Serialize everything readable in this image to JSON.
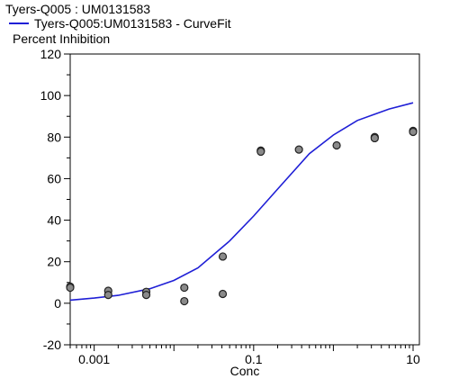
{
  "chart_data": {
    "type": "scatter",
    "title": "Tyers-Q005 : UM0131583",
    "legend": [
      {
        "name": "Tyers-Q005:UM0131583 - CurveFit",
        "color": "#1f1fd6"
      }
    ],
    "ylabel": "Percent Inhibition",
    "xlabel": "Conc",
    "xscale": "log",
    "xlim": [
      0.0005,
      12
    ],
    "ylim": [
      -20,
      120
    ],
    "yticks": [
      -20,
      0,
      20,
      40,
      60,
      80,
      100,
      120
    ],
    "xticks": [
      {
        "value": 0.001,
        "label": "0.001"
      },
      {
        "value": 0.1,
        "label": "0.1"
      },
      {
        "value": 10,
        "label": "10"
      }
    ],
    "points": [
      {
        "x": 0.0005,
        "y": 8
      },
      {
        "x": 0.0005,
        "y": 7.5
      },
      {
        "x": 0.0015,
        "y": 6
      },
      {
        "x": 0.0015,
        "y": 4
      },
      {
        "x": 0.0045,
        "y": 5.5
      },
      {
        "x": 0.0045,
        "y": 4
      },
      {
        "x": 0.0135,
        "y": 7.5
      },
      {
        "x": 0.0135,
        "y": 1
      },
      {
        "x": 0.041,
        "y": 22.5
      },
      {
        "x": 0.041,
        "y": 4.5
      },
      {
        "x": 0.123,
        "y": 73.5
      },
      {
        "x": 0.123,
        "y": 73
      },
      {
        "x": 0.37,
        "y": 74
      },
      {
        "x": 1.1,
        "y": 76
      },
      {
        "x": 3.3,
        "y": 80
      },
      {
        "x": 3.3,
        "y": 79.5
      },
      {
        "x": 10,
        "y": 83
      },
      {
        "x": 10,
        "y": 82.5
      }
    ],
    "curve": [
      {
        "x": 0.0005,
        "y": 1.5
      },
      {
        "x": 0.001,
        "y": 2.5
      },
      {
        "x": 0.002,
        "y": 3.8
      },
      {
        "x": 0.005,
        "y": 7
      },
      {
        "x": 0.01,
        "y": 11
      },
      {
        "x": 0.02,
        "y": 17
      },
      {
        "x": 0.05,
        "y": 30
      },
      {
        "x": 0.1,
        "y": 42
      },
      {
        "x": 0.2,
        "y": 55
      },
      {
        "x": 0.5,
        "y": 72
      },
      {
        "x": 1,
        "y": 81
      },
      {
        "x": 2,
        "y": 88
      },
      {
        "x": 5,
        "y": 93.5
      },
      {
        "x": 10,
        "y": 96.5
      }
    ],
    "grid": false
  }
}
